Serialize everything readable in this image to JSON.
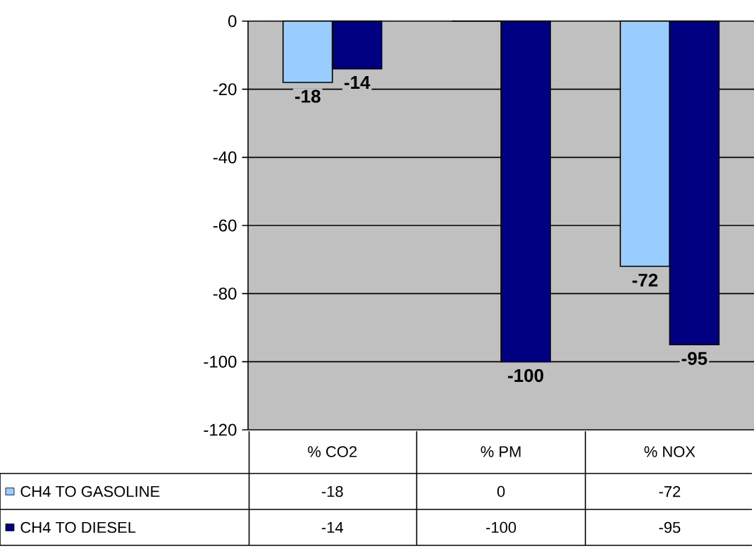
{
  "chart_data": {
    "type": "bar",
    "categories": [
      "% CO2",
      "% PM",
      "% NOX"
    ],
    "series": [
      {
        "name": "CH4 TO GASOLINE",
        "color": "#99ccff",
        "values": [
          -18,
          0,
          -72
        ],
        "value_labels": [
          "-18",
          "0",
          "-72"
        ]
      },
      {
        "name": "CH4 TO DIESEL",
        "color": "#000080",
        "values": [
          -14,
          -100,
          -95
        ],
        "value_labels": [
          "-14",
          "-100",
          "-95"
        ]
      }
    ],
    "ylim": [
      -120,
      0
    ],
    "yticks": [
      -120,
      -100,
      -80,
      -60,
      -40,
      -20,
      0
    ],
    "grid": "y",
    "legend": "bottom",
    "data_labels": true
  }
}
